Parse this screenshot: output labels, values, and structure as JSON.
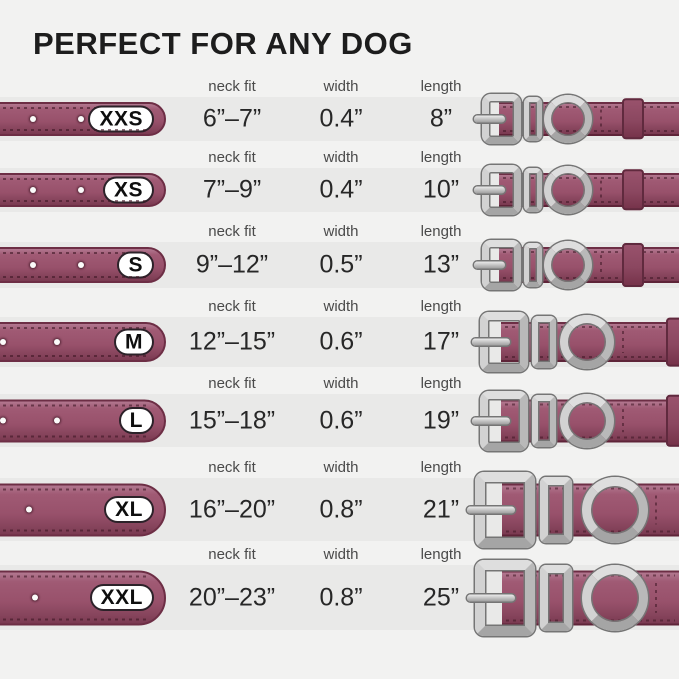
{
  "title": "PERFECT FOR ANY DOG",
  "columns": {
    "neck": "neck fit",
    "width": "width",
    "length": "length"
  },
  "colors": {
    "background": "#f2f2f1",
    "row_band": "#e9e9e8",
    "collar_strap": "#98516b",
    "collar_strap_dark": "#6d2e45",
    "metal_hardware": "#c4c4c4",
    "title_text": "#1d1d1d",
    "header_text": "#4a4a4a",
    "value_text": "#272727"
  },
  "rows": [
    {
      "size": "XXS",
      "neck_fit": "6”–7”",
      "width": "0.4”",
      "length": "8”"
    },
    {
      "size": "XS",
      "neck_fit": "7”–9”",
      "width": "0.4”",
      "length": "10”"
    },
    {
      "size": "S",
      "neck_fit": "9”–12”",
      "width": "0.5”",
      "length": "13”"
    },
    {
      "size": "M",
      "neck_fit": "12”–15”",
      "width": "0.6”",
      "length": "17”"
    },
    {
      "size": "L",
      "neck_fit": "15”–18”",
      "width": "0.6”",
      "length": "19”"
    },
    {
      "size": "XL",
      "neck_fit": "16”–20”",
      "width": "0.8”",
      "length": "21”"
    },
    {
      "size": "XXL",
      "neck_fit": "20”–23”",
      "width": "0.8”",
      "length": "25”"
    }
  ],
  "chart_data": {
    "type": "table",
    "title": "PERFECT FOR ANY DOG",
    "columns": [
      "size",
      "neck fit",
      "width",
      "length"
    ],
    "rows": [
      [
        "XXS",
        "6”–7”",
        "0.4”",
        "8”"
      ],
      [
        "XS",
        "7”–9”",
        "0.4”",
        "10”"
      ],
      [
        "S",
        "9”–12”",
        "0.5”",
        "13”"
      ],
      [
        "M",
        "12”–15”",
        "0.6”",
        "17”"
      ],
      [
        "L",
        "15”–18”",
        "0.6”",
        "19”"
      ],
      [
        "XL",
        "16”–20”",
        "0.8”",
        "21”"
      ],
      [
        "XXL",
        "20”–23”",
        "0.8”",
        "25”"
      ]
    ]
  }
}
